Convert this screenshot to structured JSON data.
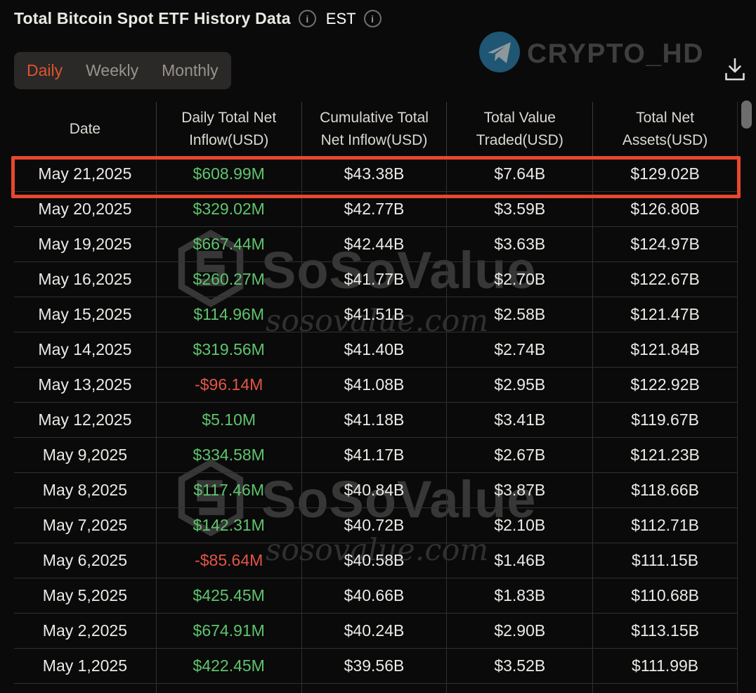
{
  "header": {
    "title": "Total Bitcoin Spot ETF History Data",
    "timezone": "EST",
    "info_glyph": "i",
    "tabs": [
      {
        "label": "Daily",
        "active": true
      },
      {
        "label": "Weekly",
        "active": false
      },
      {
        "label": "Monthly",
        "active": false
      }
    ]
  },
  "branding": {
    "channel_name": "CRYPTO_HD",
    "watermark_text": "SoSoValue",
    "watermark_domain": "sosovalue.com"
  },
  "colors": {
    "positive": "#5ec46d",
    "negative": "#e25549",
    "accent_tab": "#e0522e",
    "highlight_border": "#e8472e",
    "background": "#0a0a0a"
  },
  "table": {
    "columns": [
      "Date",
      "Daily Total Net Inflow(USD)",
      "Cumulative Total Net Inflow(USD)",
      "Total Value Traded(USD)",
      "Total Net Assets(USD)"
    ],
    "rows": [
      {
        "date": "May 21,2025",
        "daily_net_inflow": "$608.99M",
        "cumulative_net_inflow": "$43.38B",
        "total_value_traded": "$7.64B",
        "total_net_assets": "$129.02B",
        "highlighted": true
      },
      {
        "date": "May 20,2025",
        "daily_net_inflow": "$329.02M",
        "cumulative_net_inflow": "$42.77B",
        "total_value_traded": "$3.59B",
        "total_net_assets": "$126.80B",
        "highlighted": false
      },
      {
        "date": "May 19,2025",
        "daily_net_inflow": "$667.44M",
        "cumulative_net_inflow": "$42.44B",
        "total_value_traded": "$3.63B",
        "total_net_assets": "$124.97B",
        "highlighted": false
      },
      {
        "date": "May 16,2025",
        "daily_net_inflow": "$260.27M",
        "cumulative_net_inflow": "$41.77B",
        "total_value_traded": "$2.70B",
        "total_net_assets": "$122.67B",
        "highlighted": false
      },
      {
        "date": "May 15,2025",
        "daily_net_inflow": "$114.96M",
        "cumulative_net_inflow": "$41.51B",
        "total_value_traded": "$2.58B",
        "total_net_assets": "$121.47B",
        "highlighted": false
      },
      {
        "date": "May 14,2025",
        "daily_net_inflow": "$319.56M",
        "cumulative_net_inflow": "$41.40B",
        "total_value_traded": "$2.74B",
        "total_net_assets": "$121.84B",
        "highlighted": false
      },
      {
        "date": "May 13,2025",
        "daily_net_inflow": "-$96.14M",
        "cumulative_net_inflow": "$41.08B",
        "total_value_traded": "$2.95B",
        "total_net_assets": "$122.92B",
        "highlighted": false
      },
      {
        "date": "May 12,2025",
        "daily_net_inflow": "$5.10M",
        "cumulative_net_inflow": "$41.18B",
        "total_value_traded": "$3.41B",
        "total_net_assets": "$119.67B",
        "highlighted": false
      },
      {
        "date": "May 9,2025",
        "daily_net_inflow": "$334.58M",
        "cumulative_net_inflow": "$41.17B",
        "total_value_traded": "$2.67B",
        "total_net_assets": "$121.23B",
        "highlighted": false
      },
      {
        "date": "May 8,2025",
        "daily_net_inflow": "$117.46M",
        "cumulative_net_inflow": "$40.84B",
        "total_value_traded": "$3.87B",
        "total_net_assets": "$118.66B",
        "highlighted": false
      },
      {
        "date": "May 7,2025",
        "daily_net_inflow": "$142.31M",
        "cumulative_net_inflow": "$40.72B",
        "total_value_traded": "$2.10B",
        "total_net_assets": "$112.71B",
        "highlighted": false
      },
      {
        "date": "May 6,2025",
        "daily_net_inflow": "-$85.64M",
        "cumulative_net_inflow": "$40.58B",
        "total_value_traded": "$1.46B",
        "total_net_assets": "$111.15B",
        "highlighted": false
      },
      {
        "date": "May 5,2025",
        "daily_net_inflow": "$425.45M",
        "cumulative_net_inflow": "$40.66B",
        "total_value_traded": "$1.83B",
        "total_net_assets": "$110.68B",
        "highlighted": false
      },
      {
        "date": "May 2,2025",
        "daily_net_inflow": "$674.91M",
        "cumulative_net_inflow": "$40.24B",
        "total_value_traded": "$2.90B",
        "total_net_assets": "$113.15B",
        "highlighted": false
      },
      {
        "date": "May 1,2025",
        "daily_net_inflow": "$422.45M",
        "cumulative_net_inflow": "$39.56B",
        "total_value_traded": "$3.52B",
        "total_net_assets": "$111.99B",
        "highlighted": false
      }
    ]
  }
}
